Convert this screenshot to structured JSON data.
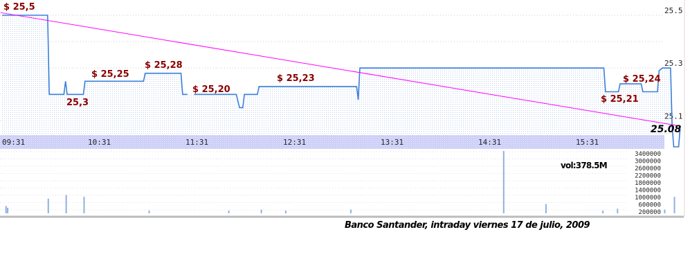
{
  "chart_data": {
    "type": "line",
    "caption": "Banco Santander, intraday viernes 17 de julio, 2009",
    "x_ticks": [
      "09:31",
      "10:31",
      "11:31",
      "12:31",
      "13:31",
      "14:31",
      "15:31"
    ],
    "y_ticks": [
      "25.5",
      "25.3",
      "25.1"
    ],
    "ylim": [
      25.0,
      25.55
    ],
    "last_price_label": "25.08",
    "price_series": [
      [
        "09:31",
        25.5
      ],
      [
        "09:59",
        25.5
      ],
      [
        "10:00",
        25.2
      ],
      [
        "10:09",
        25.2
      ],
      [
        "10:10",
        25.25
      ],
      [
        "10:11",
        25.2
      ],
      [
        "10:21",
        25.2
      ],
      [
        "10:22",
        25.25
      ],
      [
        "10:58",
        25.25
      ],
      [
        "10:59",
        25.28
      ],
      [
        "11:21",
        25.28
      ],
      [
        "11:22",
        25.2
      ],
      [
        "11:25",
        25.2
      ],
      null,
      [
        "11:29",
        25.2
      ],
      [
        "11:55",
        25.2
      ],
      [
        "11:57",
        25.15
      ],
      [
        "11:59",
        25.15
      ],
      [
        "12:00",
        25.2
      ],
      [
        "12:08",
        25.2
      ],
      [
        "12:09",
        25.23
      ],
      [
        "13:09",
        25.23
      ],
      [
        "13:10",
        25.18
      ],
      [
        "13:11",
        25.3
      ],
      [
        "15:41",
        25.3
      ],
      [
        "15:42",
        25.21
      ],
      [
        "15:50",
        25.21
      ],
      [
        "15:51",
        25.24
      ],
      [
        "16:04",
        25.24
      ],
      [
        "16:05",
        25.21
      ],
      [
        "16:14",
        25.21
      ],
      [
        "16:15",
        25.29
      ],
      [
        "16:17",
        25.3
      ],
      [
        "16:22",
        25.3
      ],
      [
        "16:23",
        25.08
      ],
      [
        "16:24",
        25.0
      ],
      [
        "16:27",
        25.0
      ],
      [
        "16:28",
        25.08
      ]
    ],
    "trend_line": [
      [
        "09:30",
        25.51
      ],
      [
        "16:28",
        25.08
      ]
    ],
    "annotations": [
      {
        "time": "09:31",
        "text": "$ 25,5"
      },
      {
        "time": "10:26",
        "text": "$ 25,25"
      },
      {
        "time": "10:11",
        "text": "25,3"
      },
      {
        "time": "10:59",
        "text": "$ 25,28"
      },
      {
        "time": "11:31",
        "text": "$ 25,20"
      },
      {
        "time": "12:41",
        "text": "$ 25,23"
      },
      {
        "time": "15:28",
        "text": "$ 25,21"
      },
      {
        "time": "15:52",
        "text": "$ 25,24"
      }
    ],
    "volume": {
      "label": "vol:378.5M",
      "y_ticks": [
        "3400000",
        "3000000",
        "2600000",
        "2200000",
        "1800000",
        "1400000",
        "1000000",
        "600000",
        "200000"
      ],
      "ylim": [
        0,
        3400000
      ],
      "bars": [
        [
          "09:33",
          400000
        ],
        [
          "09:34",
          300000
        ],
        [
          "09:59",
          800000
        ],
        [
          "10:10",
          1000000
        ],
        [
          "10:21",
          900000
        ],
        [
          "11:01",
          150000
        ],
        [
          "11:50",
          150000
        ],
        [
          "12:10",
          200000
        ],
        [
          "12:25",
          150000
        ],
        [
          "13:05",
          200000
        ],
        [
          "14:39",
          3400000
        ],
        [
          "15:05",
          500000
        ],
        [
          "15:40",
          150000
        ],
        [
          "15:49",
          250000
        ],
        [
          "16:18",
          200000
        ],
        [
          "16:24",
          900000
        ]
      ]
    },
    "colors": {
      "price": "#3a7fd8",
      "trend": "#ff00ff",
      "annotation": "#8b0000",
      "axis_band": "#cfd0f8",
      "volume": "#8fb0e0"
    }
  }
}
